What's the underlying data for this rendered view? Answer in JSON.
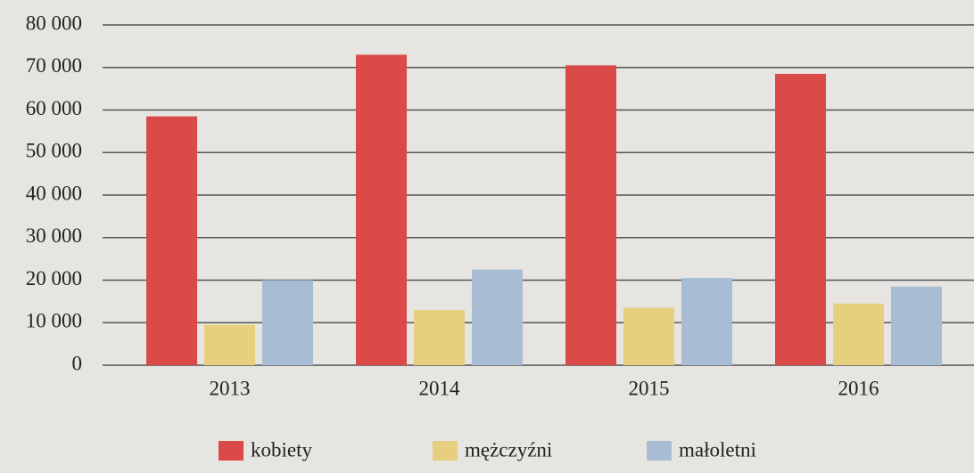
{
  "chart_data": {
    "type": "bar",
    "categories": [
      "2013",
      "2014",
      "2015",
      "2016"
    ],
    "series": [
      {
        "name": "kobiety",
        "color": "#d94a48",
        "values": [
          58500,
          73000,
          70500,
          68500
        ]
      },
      {
        "name": "mężczyźni",
        "color": "#e6cf7e",
        "values": [
          9500,
          13000,
          13500,
          14500
        ]
      },
      {
        "name": "małoletni",
        "color": "#a8bdd4",
        "values": [
          20000,
          22500,
          20500,
          18500
        ]
      }
    ],
    "ylim": [
      0,
      80000
    ],
    "yticks": [
      0,
      {
        "value": 10000,
        "label": "10 000"
      },
      {
        "value": 20000,
        "label": "20 000"
      },
      {
        "value": 30000,
        "label": "30 000"
      },
      {
        "value": 40000,
        "label": "40 000"
      },
      {
        "value": 50000,
        "label": "50 000"
      },
      {
        "value": 60000,
        "label": "60 000"
      },
      {
        "value": 70000,
        "label": "70 000"
      },
      {
        "value": 80000,
        "label": "80 000"
      }
    ],
    "grid": true,
    "legend": "bottom"
  }
}
